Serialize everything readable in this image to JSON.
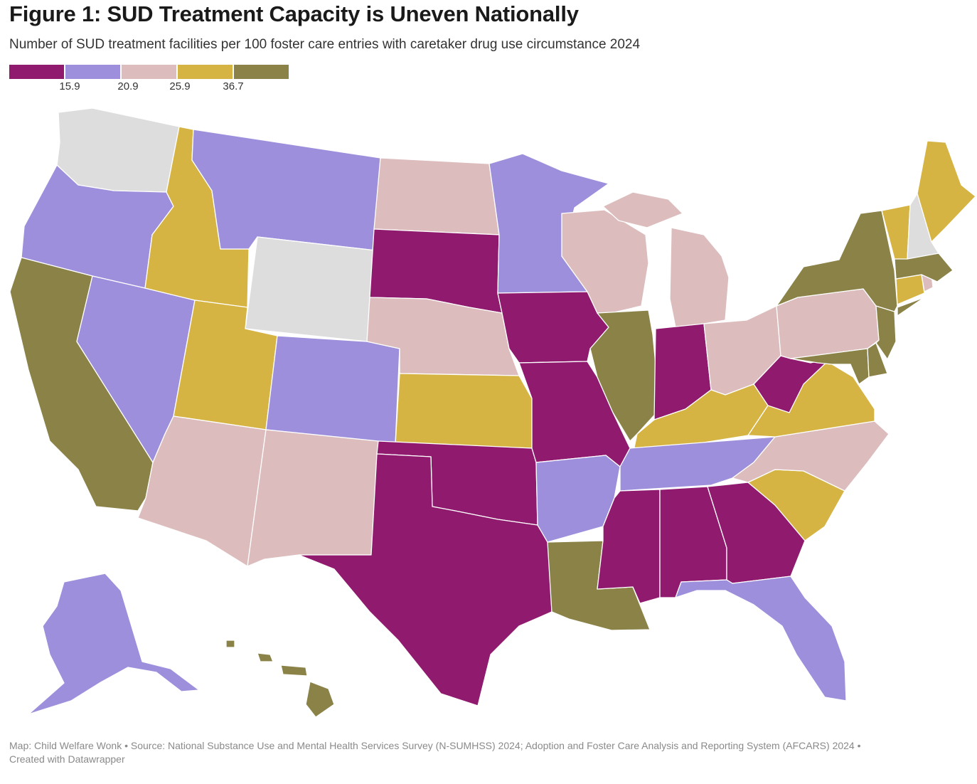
{
  "title": "Figure 1: SUD Treatment Capacity is Uneven Nationally",
  "subtitle": "Number of SUD treatment facilities per 100 foster care entries with caretaker drug use circumstance 2024",
  "legend": {
    "colors": [
      "#8f1a6e",
      "#9d8fdc",
      "#dcbcbc",
      "#d6b443",
      "#8a8247"
    ],
    "thresholds": [
      "15.9",
      "20.9",
      "25.9",
      "36.7"
    ]
  },
  "no_data_color": "#dddddd",
  "chart_data": {
    "type": "choropleth",
    "title": "Figure 1: SUD Treatment Capacity is Uneven Nationally",
    "subtitle": "Number of SUD treatment facilities per 100 foster care entries with caretaker drug use circumstance 2024",
    "bins": [
      "< 15.9",
      "15.9 – 20.9",
      "20.9 – 25.9",
      "25.9 – 36.7",
      "> 36.7"
    ],
    "bin_colors": [
      "#8f1a6e",
      "#9d8fdc",
      "#dcbcbc",
      "#d6b443",
      "#8a8247"
    ],
    "states": {
      "WA": "no data",
      "OR": 1,
      "CA": 4,
      "NV": 1,
      "ID": 3,
      "MT": 1,
      "WY": "no data",
      "UT": 3,
      "AZ": 2,
      "CO": 1,
      "NM": 2,
      "ND": 2,
      "SD": 0,
      "NE": 2,
      "KS": 3,
      "OK": 0,
      "TX": 0,
      "MN": 1,
      "IA": 0,
      "MO": 0,
      "AR": 1,
      "LA": 4,
      "WI": 2,
      "IL": 4,
      "MI": 2,
      "IN": 0,
      "OH": 2,
      "KY": 3,
      "TN": 1,
      "MS": 0,
      "AL": 0,
      "GA": 0,
      "FL": 1,
      "SC": 3,
      "NC": 2,
      "VA": 3,
      "WV": 0,
      "MD": 4,
      "DE": 4,
      "PA": 2,
      "NJ": 4,
      "NY": 4,
      "CT": 3,
      "RI": 2,
      "MA": 4,
      "VT": 3,
      "NH": "no data",
      "ME": 3,
      "AK": 1,
      "HI": 4
    }
  },
  "footer": {
    "line1": "Map: Child Welfare Wonk • Source: National Substance Use and Mental Health Services Survey (N-SUMHSS) 2024; Adoption and Foster Care Analysis and Reporting System (AFCARS) 2024 •",
    "line2": "Created with Datawrapper"
  }
}
